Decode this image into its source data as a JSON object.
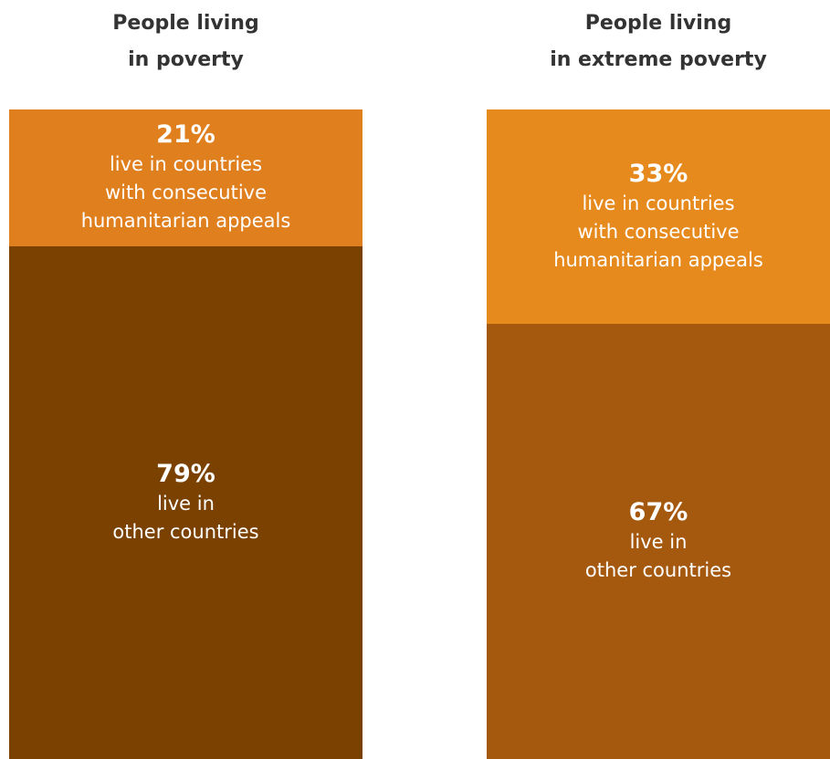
{
  "chart_data": [
    {
      "type": "bar",
      "stacked": true,
      "title_lines": [
        "People living",
        "in poverty"
      ],
      "unit": "%",
      "segments": [
        {
          "label": "21%",
          "value": 21,
          "description": "live in countries\nwith consecutive\nhumanitarian appeals",
          "color": "#E07F1E"
        },
        {
          "label": "79%",
          "value": 79,
          "description": "live in\nother countries",
          "color": "#7B4100"
        }
      ]
    },
    {
      "type": "bar",
      "stacked": true,
      "title_lines": [
        "People living",
        "in extreme poverty"
      ],
      "unit": "%",
      "segments": [
        {
          "label": "33%",
          "value": 33,
          "description": "live in countries\nwith consecutive\nhumanitarian appeals",
          "color": "#E68A1E"
        },
        {
          "label": "67%",
          "value": 67,
          "description": "live in\nother countries",
          "color": "#A5590F"
        }
      ]
    }
  ]
}
